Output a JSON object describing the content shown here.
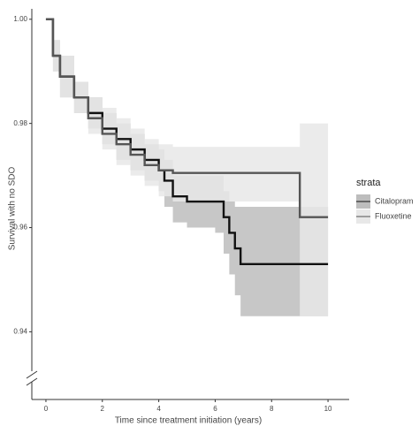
{
  "chart_data": {
    "type": "survival",
    "x_label": "Time since treatment initiation (years)",
    "y_label": "Survival with no SDO",
    "legend_title": "strata",
    "xlim": [
      -0.5,
      10.75
    ],
    "ylim": [
      0.927,
      1.002
    ],
    "xticks": [
      0,
      2,
      4,
      6,
      8,
      10
    ],
    "yticks": [
      0.94,
      0.96,
      0.98,
      {
        "value": 1,
        "label": "1.00"
      }
    ],
    "grid": false,
    "legend": "right",
    "series": [
      {
        "name": "Citalopram",
        "color": "#111111",
        "band_color": "#bdbdbd",
        "x": [
          0,
          0.25,
          0.5,
          1,
          1.5,
          2,
          2.5,
          3,
          3.5,
          4,
          4.2,
          4.5,
          5,
          6,
          6.3,
          6.5,
          6.7,
          6.9,
          7,
          8,
          9,
          10
        ],
        "values": [
          1.0,
          0.993,
          0.989,
          0.985,
          0.982,
          0.979,
          0.977,
          0.975,
          0.973,
          0.971,
          0.969,
          0.966,
          0.965,
          0.965,
          0.962,
          0.959,
          0.956,
          0.953,
          0.953,
          0.953,
          0.953,
          0.953
        ],
        "upper": [
          1.0,
          0.996,
          0.993,
          0.988,
          0.985,
          0.982,
          0.98,
          0.978,
          0.976,
          0.975,
          0.973,
          0.97,
          0.97,
          0.97,
          0.967,
          0.965,
          0.964,
          0.964,
          0.964,
          0.964,
          0.964,
          0.964
        ],
        "lower": [
          1.0,
          0.99,
          0.985,
          0.982,
          0.979,
          0.976,
          0.973,
          0.971,
          0.969,
          0.967,
          0.964,
          0.961,
          0.96,
          0.959,
          0.955,
          0.951,
          0.947,
          0.943,
          0.943,
          0.943,
          0.943,
          0.943
        ]
      },
      {
        "name": "Fluoxetine",
        "color": "#555555",
        "band_color": "#e8e8e8",
        "x": [
          0,
          0.25,
          0.5,
          1,
          1.5,
          2,
          2.5,
          3,
          3.5,
          4,
          4.5,
          5,
          6,
          7,
          8,
          8.7,
          9,
          10
        ],
        "values": [
          1.0,
          0.993,
          0.989,
          0.985,
          0.981,
          0.978,
          0.976,
          0.974,
          0.972,
          0.971,
          0.9705,
          0.9705,
          0.9705,
          0.9705,
          0.9705,
          0.9705,
          0.962,
          0.962
        ],
        "upper": [
          1.0,
          0.996,
          0.993,
          0.988,
          0.985,
          0.983,
          0.981,
          0.979,
          0.977,
          0.976,
          0.9755,
          0.9755,
          0.9755,
          0.9755,
          0.9755,
          0.9755,
          0.98,
          0.98
        ],
        "lower": [
          1.0,
          0.99,
          0.985,
          0.982,
          0.978,
          0.975,
          0.972,
          0.97,
          0.968,
          0.966,
          0.965,
          0.965,
          0.965,
          0.965,
          0.965,
          0.965,
          0.943,
          0.943
        ]
      }
    ]
  }
}
